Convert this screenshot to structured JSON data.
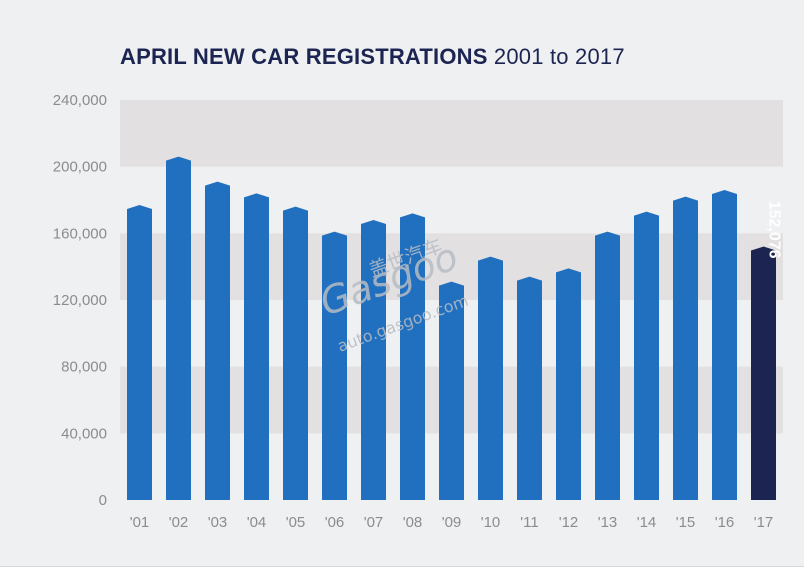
{
  "chart_data": {
    "type": "bar",
    "title_bold": "APRIL NEW CAR REGISTRATIONS",
    "title_light": "2001 to 2017",
    "categories": [
      "'01",
      "'02",
      "'03",
      "'04",
      "'05",
      "'06",
      "'07",
      "'08",
      "'09",
      "'10",
      "'11",
      "'12",
      "'13",
      "'14",
      "'15",
      "'16",
      "'17"
    ],
    "values": [
      177000,
      206000,
      191000,
      184000,
      176000,
      161000,
      168000,
      172000,
      131000,
      146000,
      134000,
      139000,
      161000,
      173000,
      182000,
      186000,
      152076
    ],
    "ylim": [
      0,
      240000
    ],
    "yticks": [
      0,
      40000,
      80000,
      120000,
      160000,
      200000,
      240000
    ],
    "ytick_labels": [
      "0",
      "40,000",
      "80,000",
      "120,000",
      "160,000",
      "200,000",
      "240,000"
    ],
    "highlight_index": 16,
    "highlight_label": "152,076",
    "grid_bands": true,
    "colors": {
      "bar": "#2170bf",
      "highlight": "#1c2551",
      "band": "#e2e0e1",
      "background": "#eff0f2",
      "title": "#1c2551",
      "tick": "#8b8c8f"
    }
  },
  "watermark": {
    "chinese": "盖世汽车",
    "brand": "Gasgoo",
    "url": "auto.gasgoo.com"
  }
}
